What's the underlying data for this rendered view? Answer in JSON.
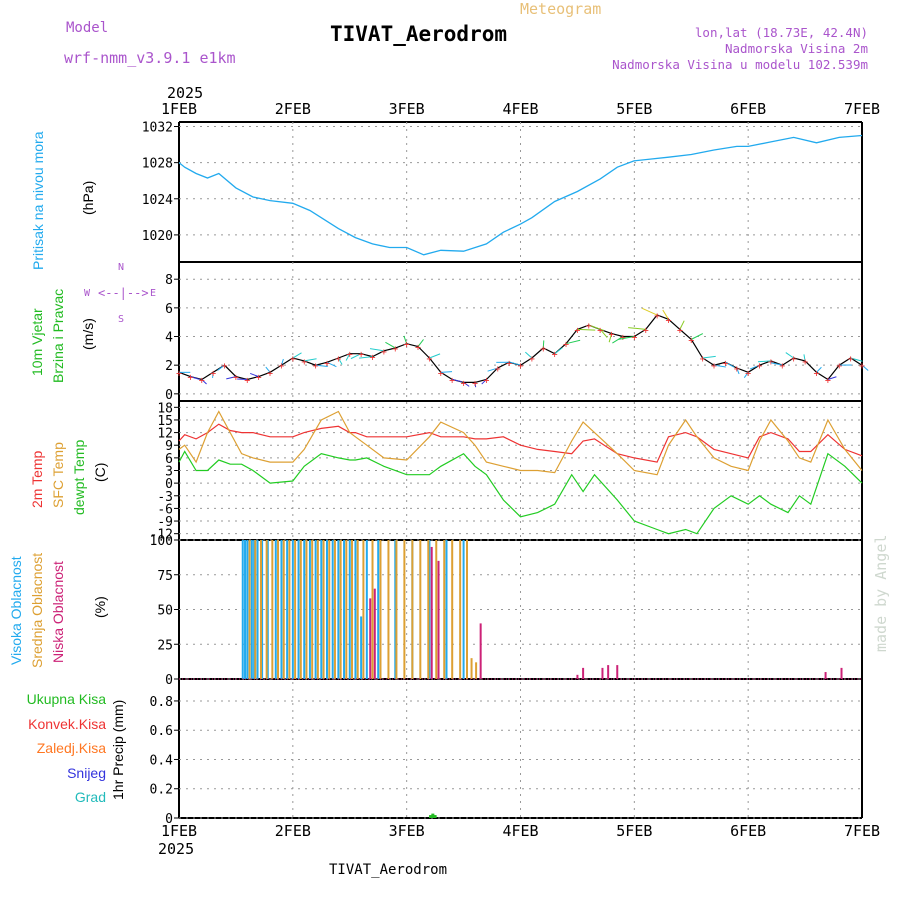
{
  "header": {
    "model_label": "Model",
    "model_name": "wrf-nmm_v3.9.1 e1km",
    "station": "TIVAT_Aerodrom",
    "product": "Meteogram",
    "lonlat": "lon,lat (18.73E, 42.4N)",
    "elevation": "Nadmorska Visina 2m",
    "model_elevation": "Nadmorska Visina u modelu 102.539m",
    "footer_station": "TIVAT_Aerodrom",
    "credit": "made by Angel"
  },
  "time_axis": {
    "year": "2025",
    "ticks": [
      "1FEB",
      "2FEB",
      "3FEB",
      "4FEB",
      "5FEB",
      "6FEB",
      "7FEB"
    ]
  },
  "panels": {
    "pressure": {
      "ylabel": "Pritisak na nivou mora",
      "unit": "(hPa)",
      "ticks": [
        "1020",
        "1024",
        "1028",
        "1032"
      ],
      "color": "#22aaee"
    },
    "wind": {
      "ylabel1": "10m Vjetar",
      "ylabel2": "Brzina i Pravac",
      "unit": "(m/s)",
      "ticks": [
        "0",
        "2",
        "4",
        "6",
        "8"
      ],
      "compass_n": "N",
      "compass_w": "W",
      "compass_e": "E",
      "compass_s": "S"
    },
    "temperature": {
      "ylabel1": "2m Temp",
      "ylabel2": "SFC Temp",
      "ylabel3": "dewpt Temp",
      "unit": "(C)",
      "ticks": [
        "-12",
        "-9",
        "-6",
        "-3",
        "0",
        "3",
        "6",
        "9",
        "12",
        "15",
        "18"
      ]
    },
    "cloud": {
      "ylabel1": "Visoka Oblacnost",
      "ylabel2": "Srednja Oblacnost",
      "ylabel3": "Niska Oblacnost",
      "unit": "(%)",
      "ticks": [
        "0",
        "25",
        "50",
        "75",
        "100"
      ]
    },
    "precip": {
      "unit_label": "1hr Precip (mm)",
      "ticks": [
        "0",
        "0.2",
        "0.4",
        "0.6",
        "0.8"
      ],
      "legend": [
        {
          "label": "Ukupna Kisa",
          "color": "#22bb22"
        },
        {
          "label": "Konvek.Kisa",
          "color": "#ee3333"
        },
        {
          "label": "Zaledj.Kisa",
          "color": "#ff7722"
        },
        {
          "label": "Snijeg",
          "color": "#3333dd"
        },
        {
          "label": "Grad",
          "color": "#22bbbb"
        }
      ]
    }
  },
  "chart_data": [
    {
      "type": "line",
      "title": "Pritisak na nivou mora",
      "ylabel": "(hPa)",
      "ylim": [
        1017,
        1032.5
      ],
      "x_days": [
        0,
        0.05,
        0.15,
        0.25,
        0.35,
        0.5,
        0.65,
        0.8,
        1.0,
        1.15,
        1.4,
        1.55,
        1.7,
        1.85,
        2.0,
        2.15,
        2.3,
        2.5,
        2.7,
        2.85,
        3.0,
        3.1,
        3.3,
        3.5,
        3.7,
        3.85,
        4.0,
        4.15,
        4.3,
        4.5,
        4.7,
        4.9,
        5.0,
        5.2,
        5.4,
        5.6,
        5.8,
        6.0
      ],
      "series": [
        {
          "name": "Pritisak",
          "color": "#22aaee",
          "values": [
            1028,
            1027.5,
            1026.8,
            1026.3,
            1026.8,
            1025.2,
            1024.2,
            1023.8,
            1023.5,
            1022.7,
            1020.7,
            1019.7,
            1019.0,
            1018.6,
            1018.6,
            1017.8,
            1018.3,
            1018.2,
            1019.0,
            1020.3,
            1021.2,
            1021.9,
            1023.7,
            1024.8,
            1026.2,
            1027.5,
            1028.2,
            1028.4,
            1028.6,
            1028.9,
            1029.4,
            1029.8,
            1029.8,
            1030.3,
            1030.8,
            1030.2,
            1030.8,
            1031.0
          ]
        }
      ]
    },
    {
      "type": "line",
      "title": "10m Vjetar Brzina i Pravac",
      "ylabel": "(m/s)",
      "ylim": [
        -0.5,
        9.2
      ],
      "x_days": [
        0,
        0.1,
        0.2,
        0.3,
        0.4,
        0.5,
        0.6,
        0.7,
        0.8,
        0.9,
        1.0,
        1.1,
        1.2,
        1.3,
        1.4,
        1.5,
        1.6,
        1.7,
        1.8,
        1.9,
        2.0,
        2.1,
        2.2,
        2.3,
        2.4,
        2.5,
        2.6,
        2.7,
        2.8,
        2.9,
        3.0,
        3.1,
        3.2,
        3.3,
        3.4,
        3.5,
        3.6,
        3.7,
        3.8,
        3.9,
        4.0,
        4.1,
        4.2,
        4.3,
        4.4,
        4.5,
        4.6,
        4.7,
        4.8,
        4.9,
        5.0,
        5.1,
        5.2,
        5.3,
        5.4,
        5.5,
        5.6,
        5.7,
        5.8,
        5.9,
        6.0
      ],
      "series": [
        {
          "name": "Brzina",
          "color": "#000000",
          "values": [
            1.5,
            1.2,
            1.0,
            1.5,
            2.0,
            1.2,
            1.0,
            1.2,
            1.5,
            2.0,
            2.5,
            2.3,
            2.0,
            2.2,
            2.5,
            2.8,
            2.8,
            2.6,
            3.0,
            3.2,
            3.5,
            3.3,
            2.5,
            1.5,
            1.0,
            0.8,
            0.8,
            1.0,
            1.8,
            2.2,
            2.0,
            2.5,
            3.2,
            2.8,
            3.5,
            4.5,
            4.8,
            4.5,
            4.2,
            4.0,
            4.0,
            4.5,
            5.5,
            5.2,
            4.5,
            3.8,
            2.5,
            2.0,
            2.2,
            1.8,
            1.5,
            2.0,
            2.3,
            2.0,
            2.5,
            2.3,
            1.5,
            1.0,
            2.0,
            2.5,
            2.0
          ]
        }
      ]
    },
    {
      "type": "line",
      "title": "2m Temp / SFC Temp / dewpt Temp",
      "ylabel": "(C)",
      "ylim": [
        -13.5,
        19.5
      ],
      "x_days": [
        0,
        0.05,
        0.15,
        0.25,
        0.35,
        0.45,
        0.55,
        0.65,
        0.8,
        1.0,
        1.1,
        1.25,
        1.4,
        1.5,
        1.55,
        1.65,
        1.8,
        2.0,
        2.2,
        2.3,
        2.5,
        2.6,
        2.7,
        2.85,
        3.0,
        3.15,
        3.3,
        3.45,
        3.55,
        3.65,
        3.85,
        4.0,
        4.2,
        4.3,
        4.45,
        4.55,
        4.7,
        4.85,
        5.0,
        5.1,
        5.2,
        5.35,
        5.45,
        5.55,
        5.7,
        5.85,
        6.0
      ],
      "series": [
        {
          "name": "2m Temp",
          "color": "#ee3333",
          "values": [
            10,
            11.5,
            10.5,
            12,
            14,
            12.5,
            12,
            12,
            11,
            11,
            12,
            13,
            13.5,
            12,
            12,
            11,
            11,
            11,
            12,
            11,
            11,
            10.5,
            10.5,
            11,
            9,
            8,
            7.5,
            7,
            10,
            10.5,
            7,
            6,
            5,
            11,
            12,
            11,
            8,
            7,
            6,
            11,
            12,
            10.5,
            7.5,
            7.5,
            11.5,
            8,
            6.5
          ]
        },
        {
          "name": "SFC Temp",
          "color": "#dda033",
          "values": [
            8,
            9,
            5,
            12,
            17,
            12,
            7,
            6,
            5,
            5,
            8,
            15,
            17,
            12,
            11,
            9,
            6,
            5.5,
            11,
            14.5,
            12,
            9,
            5,
            4,
            3,
            3,
            2.5,
            10,
            14.5,
            12,
            7,
            3,
            2,
            9,
            15,
            11,
            6,
            4,
            3,
            10,
            15,
            10,
            6,
            5,
            15,
            8,
            3
          ]
        },
        {
          "name": "dewpt Temp",
          "color": "#22cc22",
          "values": [
            5,
            7.5,
            3,
            3,
            5.5,
            4.5,
            4.5,
            3,
            0,
            0.5,
            4,
            7,
            6,
            5.5,
            5.5,
            6,
            4,
            2,
            2,
            4,
            7,
            4,
            2,
            -4,
            -8,
            -7,
            -5,
            2,
            -2,
            2,
            -4,
            -9,
            -11,
            -12,
            -11,
            -12,
            -6,
            -3,
            -5,
            -3,
            -5,
            -7,
            -3,
            -5,
            7,
            4,
            0
          ]
        }
      ]
    },
    {
      "type": "bar",
      "title": "Visoka / Srednja / Niska Oblacnost",
      "ylabel": "(%)",
      "ylim": [
        0,
        100
      ],
      "series": [
        {
          "name": "Visoka Oblacnost",
          "color": "#22aaee",
          "x_days": [
            0.56,
            0.58,
            0.6,
            0.62,
            0.64,
            0.66,
            0.69,
            0.73,
            0.78,
            0.85,
            0.9,
            0.95,
            1.0,
            1.05,
            1.1,
            1.15,
            1.2,
            1.25,
            1.3,
            1.35,
            1.4,
            1.45,
            1.5,
            1.55,
            1.6,
            1.65,
            1.75,
            1.9,
            2.05,
            2.2,
            2.35,
            2.5
          ],
          "values": [
            100,
            100,
            100,
            100,
            100,
            100,
            100,
            100,
            100,
            100,
            100,
            100,
            100,
            100,
            100,
            100,
            100,
            100,
            100,
            100,
            100,
            100,
            100,
            100,
            45,
            100,
            100,
            100,
            100,
            100,
            100,
            100
          ]
        },
        {
          "name": "Srednja Oblacnost",
          "color": "#dda033",
          "x_days": [
            0.62,
            0.67,
            0.72,
            0.77,
            0.82,
            0.87,
            0.92,
            0.97,
            1.02,
            1.07,
            1.12,
            1.17,
            1.22,
            1.27,
            1.32,
            1.37,
            1.42,
            1.47,
            1.52,
            1.57,
            1.62,
            1.7,
            1.77,
            1.84,
            1.91,
            1.98,
            2.05,
            2.12,
            2.19,
            2.26,
            2.33,
            2.4,
            2.47,
            2.53,
            2.57,
            2.61
          ],
          "values": [
            100,
            100,
            100,
            100,
            100,
            100,
            100,
            100,
            100,
            100,
            100,
            100,
            100,
            100,
            100,
            100,
            100,
            100,
            100,
            100,
            100,
            100,
            100,
            100,
            100,
            100,
            100,
            100,
            100,
            100,
            100,
            100,
            100,
            100,
            15,
            12
          ]
        },
        {
          "name": "Niska Oblacnost",
          "color": "#cc2277",
          "x_days": [
            1.68,
            1.72,
            2.22,
            2.28,
            2.65,
            3.5,
            3.55,
            3.72,
            3.77,
            3.85,
            5.68,
            5.82
          ],
          "values": [
            58,
            65,
            95,
            85,
            40,
            3,
            8,
            8,
            10,
            10,
            5,
            8
          ]
        }
      ]
    },
    {
      "type": "bar",
      "title": "1hr Precip",
      "ylabel": "1hr Precip (mm)",
      "ylim": [
        0,
        0.95
      ],
      "series": [
        {
          "name": "Ukupna Kisa",
          "color": "#22bb22",
          "x_days": [
            2.21,
            2.23,
            2.25
          ],
          "values": [
            0.02,
            0.03,
            0.02
          ]
        }
      ]
    }
  ]
}
